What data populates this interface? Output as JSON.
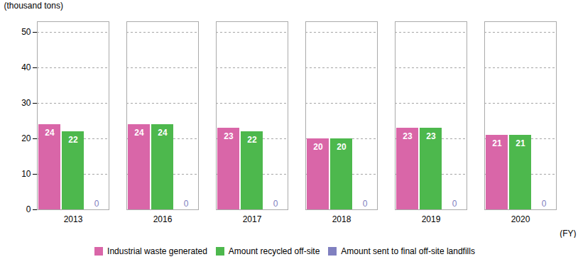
{
  "chart_data": {
    "type": "bar",
    "categories": [
      "2013",
      "2016",
      "2017",
      "2018",
      "2019",
      "2020"
    ],
    "series": [
      {
        "name": "Industrial waste generated",
        "color": "#d966a8",
        "values": [
          24,
          24,
          23,
          20,
          23,
          21
        ]
      },
      {
        "name": "Amount recycled off-site",
        "color": "#4db84d",
        "values": [
          22,
          24,
          22,
          20,
          23,
          21
        ]
      },
      {
        "name": "Amount sent to final off-site landfills",
        "color": "#8080c0",
        "values": [
          0,
          0,
          0,
          0,
          0,
          0
        ]
      }
    ],
    "xlabel": "(FY)",
    "ylabel": "(thousand tons)",
    "ylim": [
      0,
      53
    ],
    "yticks": [
      0,
      10,
      20,
      30,
      40,
      50
    ],
    "grid": true,
    "legend": "bottom",
    "data_labels": true
  }
}
